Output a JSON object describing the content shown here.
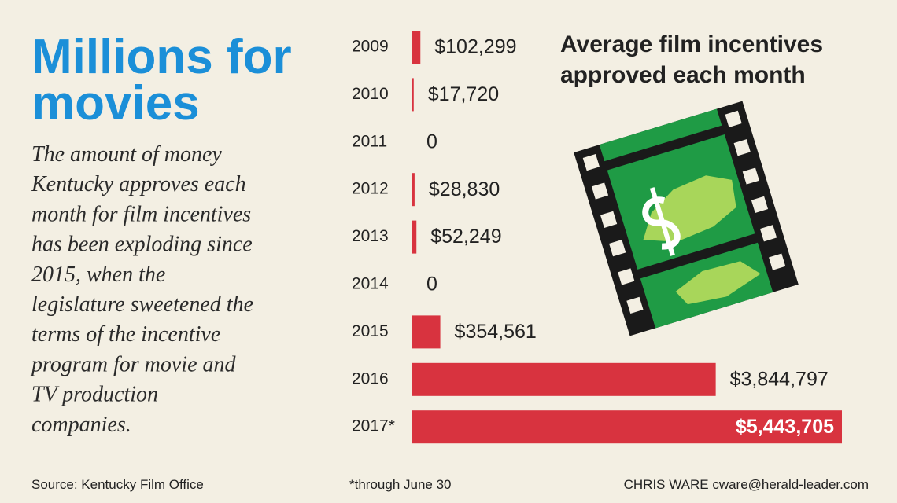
{
  "headline": [
    "Millions for",
    "movies"
  ],
  "description": [
    "The amount of money",
    "Kentucky approves each",
    "month for film incentives",
    "has been exploding since",
    "2015, when the",
    "legislature sweetened the",
    "terms of the incentive",
    "program for movie and",
    "TV production",
    "companies."
  ],
  "chart_data": {
    "type": "bar",
    "orientation": "horizontal",
    "title": [
      "Average film incentives",
      "approved each month"
    ],
    "categories": [
      "2009",
      "2010",
      "2011",
      "2012",
      "2013",
      "2014",
      "2015",
      "2016",
      "2017*"
    ],
    "values": [
      102299,
      17720,
      0,
      28830,
      52249,
      0,
      354561,
      3844797,
      5443705
    ],
    "value_labels": [
      "$102,299",
      "$17,720",
      "0",
      "$28,830",
      "$52,249",
      "0",
      "$354,561",
      "$3,844,797",
      "$5,443,705"
    ],
    "color": "#d8333f"
  },
  "footer": {
    "source": "Source: Kentucky Film Office",
    "note": "*through June 30",
    "credit": "CHRIS WARE cware@herald-leader.com"
  }
}
